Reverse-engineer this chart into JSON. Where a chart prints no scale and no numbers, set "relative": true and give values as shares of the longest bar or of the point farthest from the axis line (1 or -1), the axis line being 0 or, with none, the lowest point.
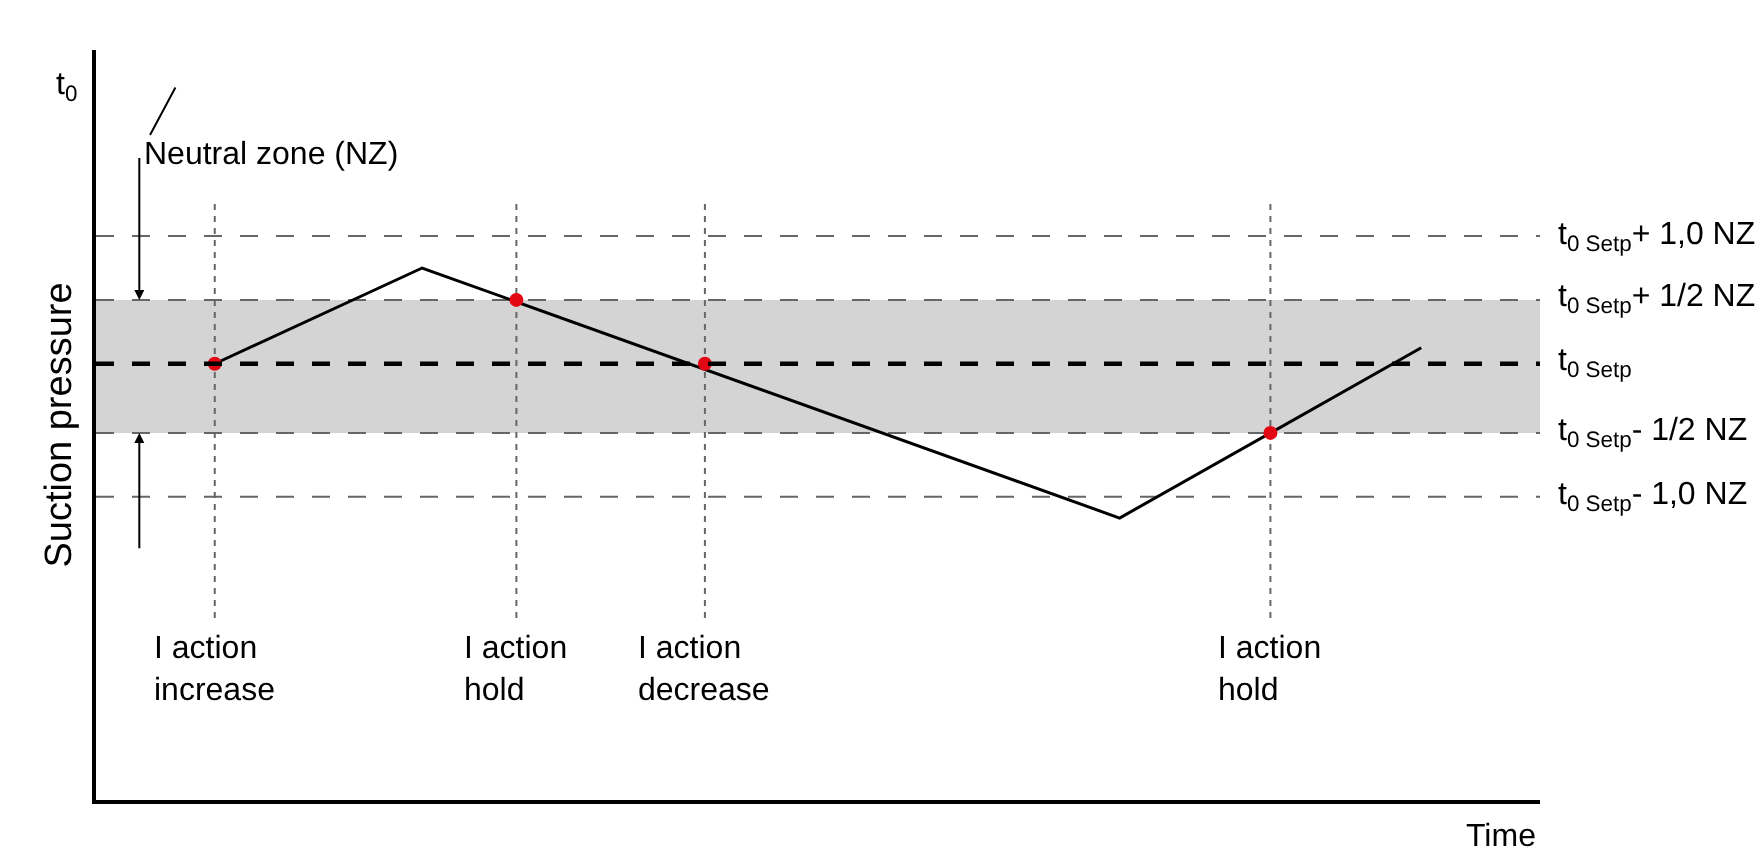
{
  "chart_data": {
    "type": "line",
    "relative": true,
    "xlabel": "Time",
    "ylabel": "Suction pressure",
    "tick_labels": "x",
    "grid": "x",
    "marker": "none",
    "line_style": "solid",
    "categories": [
      null,
      null,
      null,
      null,
      null,
      null,
      "I action\nincrease",
      null,
      null,
      null,
      null,
      null,
      null,
      null,
      null,
      null,
      null,
      null,
      null,
      null,
      null,
      null,
      "I action\nhold",
      null,
      null,
      null,
      null,
      null,
      null,
      null,
      null,
      null,
      "I action\ndecrease",
      null,
      null,
      null,
      null,
      null,
      null,
      null,
      null,
      null,
      null,
      null,
      null,
      null,
      null,
      null,
      null,
      null,
      null,
      null,
      null,
      null,
      null,
      null,
      null,
      null,
      null,
      null,
      null,
      null,
      "I action\nhold",
      null,
      null,
      null,
      null,
      null,
      null,
      null,
      null,
      null,
      null,
      null,
      null,
      null,
      null
    ],
    "series": [
      {
        "color": "#000000",
        "values": [
          null,
          null,
          null,
          null,
          null,
          null,
          0.82,
          null,
          null,
          null,
          null,
          null,
          null,
          null,
          null,
          null,
          null,
          1,
          null,
          null,
          null,
          null,
          null,
          null,
          null,
          null,
          null,
          null,
          null,
          null,
          null,
          null,
          null,
          null,
          null,
          null,
          null,
          null,
          null,
          null,
          null,
          null,
          null,
          null,
          null,
          null,
          null,
          null,
          null,
          null,
          null,
          null,
          null,
          null,
          0.53,
          null,
          null,
          null,
          null,
          null,
          null,
          null,
          null,
          null,
          null,
          null,
          null,
          null,
          null,
          null,
          0.85,
          null,
          null,
          null,
          null,
          null,
          null
        ]
      },
      {
        "type": "scatter",
        "color": "#e30613",
        "marker": "circle",
        "values": [
          null,
          null,
          null,
          null,
          null,
          null,
          0.82,
          null,
          null,
          null,
          null,
          null,
          null,
          null,
          null,
          null,
          null,
          null,
          null,
          null,
          null,
          null,
          0.94,
          null,
          null,
          null,
          null,
          null,
          null,
          null,
          null,
          null,
          0.82,
          null,
          null,
          null,
          null,
          null,
          null,
          null,
          null,
          null,
          null,
          null,
          null,
          null,
          null,
          null,
          null,
          null,
          null,
          null,
          null,
          null,
          null,
          null,
          null,
          null,
          null,
          null,
          null,
          null,
          0.69,
          null,
          null,
          null,
          null,
          null,
          null,
          null,
          null,
          null,
          null,
          null,
          null,
          null,
          null
        ]
      }
    ],
    "bands": [
      {
        "axis": "y",
        "from": 0.69,
        "to": 0.94,
        "color": "#d4d4d4"
      }
    ],
    "ref_lines": [
      {
        "axis": "y",
        "value": 1.06,
        "label": "t$_{0 Setp}$+ 1,0 NZ",
        "color": "#666666",
        "line_style": "dashed"
      },
      {
        "axis": "y",
        "value": 0.94,
        "label": "t$_{0 Setp}$+ 1/2 NZ",
        "color": "#666666",
        "line_style": "dashed"
      },
      {
        "axis": "y",
        "value": 0.82,
        "label": "t$_{0 Setp}$",
        "color": "#000000",
        "line_style": "dashed"
      },
      {
        "axis": "y",
        "value": 0.69,
        "label": "t$_{0 Setp}$- 1/2 NZ",
        "color": "#666666",
        "line_style": "dashed"
      },
      {
        "axis": "y",
        "value": 0.57,
        "label": "t$_{0 Setp}$- 1,0 NZ",
        "color": "#666666",
        "line_style": "dashed"
      }
    ],
    "annotations": [
      "t$_{0}$",
      "Neutral zone (NZ)"
    ]
  }
}
